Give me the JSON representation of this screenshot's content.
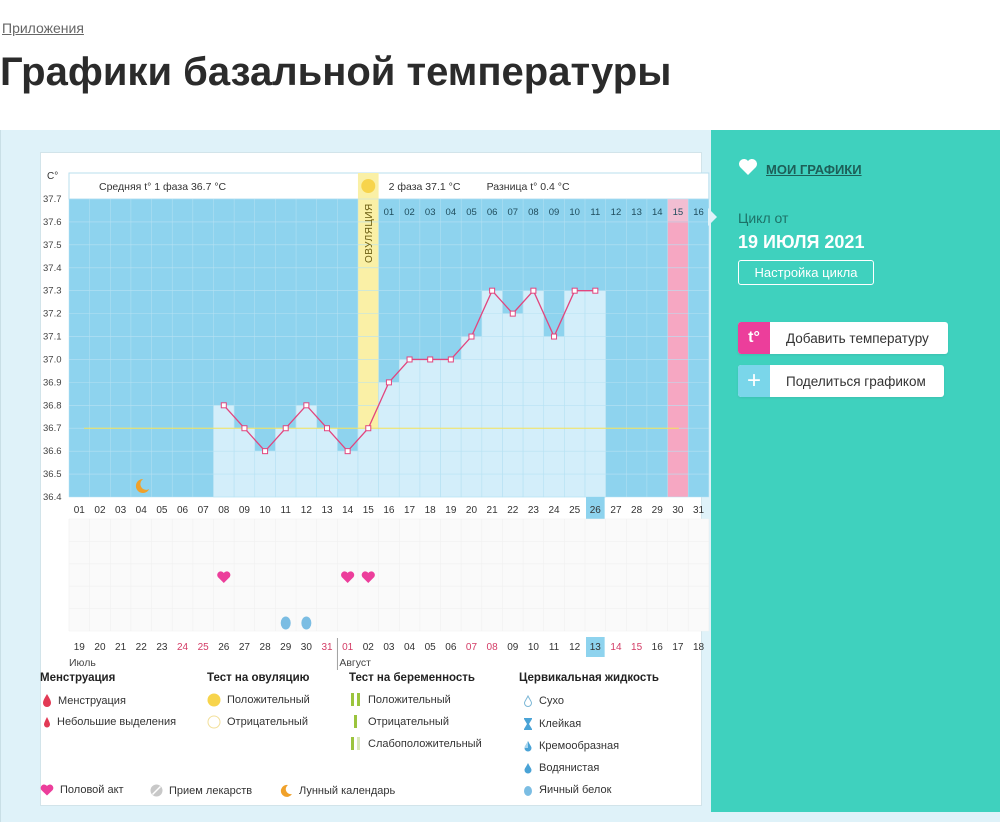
{
  "breadcrumb": "Приложения",
  "title": "Графики базальной температуры",
  "chart_header": {
    "unit": "C°",
    "phase1": "Средняя t° 1 фаза 36.7 °С",
    "phase2": "2 фаза 37.1 °С",
    "diff": "Разница t° 0.4 °С",
    "ovulation": "ОВУЛЯЦИЯ",
    "phase2_days": [
      "01",
      "02",
      "03",
      "04",
      "05",
      "06",
      "07",
      "08",
      "09",
      "10",
      "11",
      "12",
      "13",
      "14",
      "15",
      "16"
    ]
  },
  "chart_data": {
    "type": "line",
    "ylabel": "C°",
    "ylim": [
      36.4,
      37.7
    ],
    "yticks": [
      "37.7",
      "37.6",
      "37.5",
      "37.4",
      "37.3",
      "37.2",
      "37.1",
      "37.0",
      "36.9",
      "36.8",
      "36.7",
      "36.6",
      "36.5",
      "36.4"
    ],
    "cycle_days": [
      "01",
      "02",
      "03",
      "04",
      "05",
      "06",
      "07",
      "08",
      "09",
      "10",
      "11",
      "12",
      "13",
      "14",
      "15",
      "16",
      "17",
      "18",
      "19",
      "20",
      "21",
      "22",
      "23",
      "24",
      "25",
      "26",
      "27",
      "28",
      "29",
      "30",
      "31"
    ],
    "dates": [
      "19",
      "20",
      "21",
      "22",
      "23",
      "24",
      "25",
      "26",
      "27",
      "28",
      "29",
      "30",
      "31",
      "01",
      "02",
      "03",
      "04",
      "05",
      "06",
      "07",
      "08",
      "09",
      "10",
      "11",
      "12",
      "13",
      "14",
      "15",
      "16",
      "17",
      "18"
    ],
    "date_red": [
      false,
      false,
      false,
      false,
      false,
      true,
      true,
      false,
      false,
      false,
      false,
      false,
      true,
      true,
      false,
      false,
      false,
      false,
      false,
      true,
      true,
      false,
      false,
      false,
      false,
      false,
      true,
      true,
      false,
      false,
      false
    ],
    "month_labels": [
      "Июль",
      "Август"
    ],
    "temps": [
      null,
      null,
      null,
      null,
      null,
      null,
      null,
      36.8,
      36.7,
      36.6,
      36.7,
      36.8,
      36.7,
      36.6,
      36.7,
      36.9,
      37.0,
      37.0,
      37.0,
      37.1,
      37.3,
      37.2,
      37.3,
      37.1,
      37.3,
      37.3,
      null,
      null,
      null,
      null,
      null
    ],
    "cover_line": 36.7,
    "ovulation_day": 15,
    "period_day": 30,
    "today_day": 26,
    "moon_day": 4,
    "sex_days": [
      8,
      14,
      15
    ],
    "fluid_days": [
      11,
      12
    ]
  },
  "legend": {
    "menstruation": {
      "title": "Менструация",
      "items": [
        "Менструация",
        "Небольшие выделения"
      ]
    },
    "ovulation_test": {
      "title": "Тест на овуляцию",
      "items": [
        "Положительный",
        "Отрицательный"
      ]
    },
    "pregnancy_test": {
      "title": "Тест на беременность",
      "items": [
        "Положительный",
        "Отрицательный",
        "Слабоположительный"
      ]
    },
    "cervical": {
      "title": "Цервикальная жидкость",
      "items": [
        "Сухо",
        "Клейкая",
        "Кремообразная",
        "Водянистая",
        "Яичный белок"
      ]
    },
    "bottom": [
      "Половой акт",
      "Прием лекарств",
      "Лунный календарь"
    ]
  },
  "sidebar": {
    "my_charts": "МОИ ГРАФИКИ",
    "cycle_from": "Цикл от",
    "cycle_date": "19 ИЮЛЯ 2021",
    "settings": "Настройка цикла",
    "add_temp": "Добавить температуру",
    "add_temp_icon": "t°",
    "share": "Поделиться графиком"
  },
  "colors": {
    "grid_bg": "#8ed3ee",
    "bar": "#d3eefa",
    "line": "#e2457e",
    "ovulation": "#faf0a6",
    "period": "#f6a7c2",
    "side": "#3fd1be"
  }
}
